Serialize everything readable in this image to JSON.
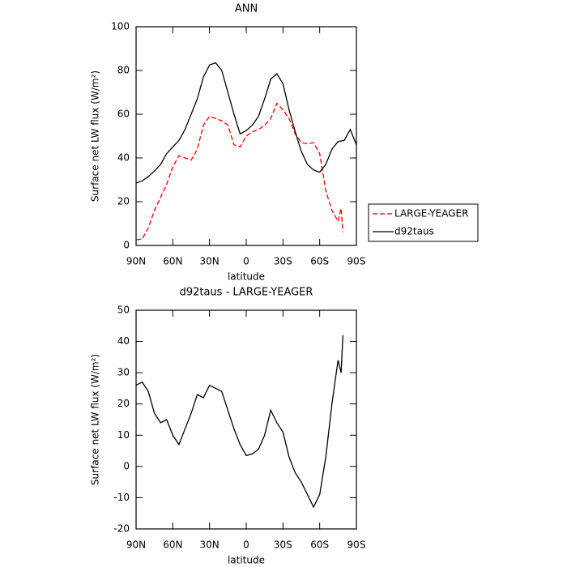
{
  "chart_data": [
    {
      "type": "line",
      "title": "ANN",
      "xlabel": "latitude",
      "ylabel": "Surface net LW flux (W/m²)",
      "xlim": [
        90,
        -90
      ],
      "ylim": [
        0,
        100
      ],
      "xticks": [
        {
          "value": 90,
          "label": "90N"
        },
        {
          "value": 60,
          "label": "60N"
        },
        {
          "value": 30,
          "label": "30N"
        },
        0,
        {
          "value": -30,
          "label": "30S"
        },
        {
          "value": -60,
          "label": "60S"
        },
        {
          "value": -90,
          "label": "90S"
        }
      ],
      "yticks": [
        0,
        20,
        40,
        60,
        80,
        100
      ],
      "legend": "right",
      "series": [
        {
          "name": "LARGE-YEAGER",
          "color": "#ff0000",
          "dash": true,
          "x": [
            90,
            85,
            80,
            75,
            70,
            65,
            60,
            55,
            50,
            45,
            40,
            35,
            30,
            25,
            20,
            15,
            10,
            5,
            0,
            -5,
            -10,
            -15,
            -20,
            -25,
            -30,
            -35,
            -40,
            -45,
            -50,
            -55,
            -60,
            -65,
            -70,
            -75,
            -77.5,
            -79
          ],
          "values": [
            2.5,
            3,
            8,
            16,
            22,
            28,
            36,
            41,
            40,
            39,
            44,
            55,
            59,
            58,
            57,
            55,
            46,
            45,
            50,
            52,
            53,
            55,
            58,
            65,
            62,
            58,
            51,
            47,
            46.5,
            47,
            42,
            25,
            16,
            11,
            17,
            6
          ]
        },
        {
          "name": "d92taus",
          "color": "#000000",
          "dash": false,
          "x": [
            90,
            85,
            80,
            75,
            70,
            65,
            60,
            55,
            50,
            45,
            40,
            35,
            30,
            25,
            20,
            15,
            10,
            5,
            0,
            -5,
            -10,
            -15,
            -20,
            -25,
            -30,
            -35,
            -40,
            -45,
            -50,
            -55,
            -60,
            -65,
            -70,
            -75,
            -80,
            -85,
            -90
          ],
          "values": [
            28.5,
            29.5,
            31.5,
            34,
            37,
            42,
            45,
            48,
            53,
            60,
            67,
            77,
            82.5,
            83.5,
            80,
            70,
            60,
            51,
            52.5,
            55,
            59,
            67,
            76,
            78.5,
            74,
            62,
            52,
            43,
            37,
            34.5,
            33.5,
            37,
            44,
            47.5,
            48,
            53,
            46
          ]
        }
      ]
    },
    {
      "type": "line",
      "title": "d92taus - LARGE-YEAGER",
      "xlabel": "latitude",
      "ylabel": "Surface net LW flux (W/m²)",
      "xlim": [
        90,
        -90
      ],
      "ylim": [
        -20,
        50
      ],
      "xticks": [
        {
          "value": 90,
          "label": "90N"
        },
        {
          "value": 60,
          "label": "60N"
        },
        {
          "value": 30,
          "label": "30N"
        },
        0,
        {
          "value": -30,
          "label": "30S"
        },
        {
          "value": -60,
          "label": "60S"
        },
        {
          "value": -90,
          "label": "90S"
        }
      ],
      "yticks": [
        -20,
        -10,
        0,
        10,
        20,
        30,
        40,
        50
      ],
      "series": [
        {
          "color": "#000000",
          "dash": false,
          "x": [
            90,
            85,
            80,
            75,
            70,
            65,
            60,
            55,
            50,
            45,
            40,
            35,
            30,
            25,
            20,
            15,
            10,
            5,
            0,
            -5,
            -10,
            -15,
            -20,
            -25,
            -30,
            -35,
            -40,
            -45,
            -50,
            -55,
            -60,
            -65,
            -70,
            -75,
            -77.5,
            -79
          ],
          "values": [
            26,
            27,
            24,
            17,
            14,
            15,
            10,
            7,
            12,
            17,
            23,
            22,
            26,
            25,
            24,
            18,
            12,
            7,
            3.5,
            4,
            5.5,
            10,
            18,
            14,
            11,
            3,
            -2,
            -5,
            -9,
            -13,
            -9,
            3,
            20,
            34,
            30,
            42
          ]
        }
      ]
    }
  ]
}
